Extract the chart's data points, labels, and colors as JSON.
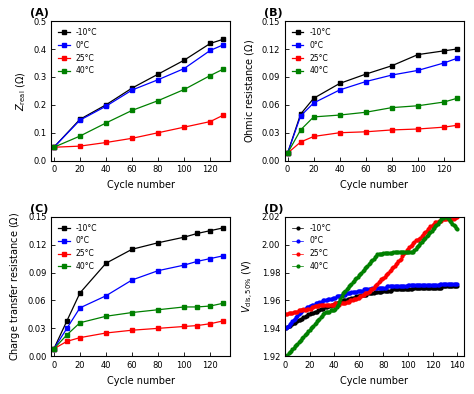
{
  "cycles_A": [
    0,
    20,
    40,
    60,
    80,
    100,
    120,
    130
  ],
  "A_black": [
    0.048,
    0.148,
    0.2,
    0.26,
    0.31,
    0.36,
    0.42,
    0.435
  ],
  "A_blue": [
    0.048,
    0.145,
    0.195,
    0.253,
    0.29,
    0.33,
    0.395,
    0.415
  ],
  "A_red": [
    0.048,
    0.052,
    0.065,
    0.08,
    0.1,
    0.12,
    0.14,
    0.163
  ],
  "A_green": [
    0.048,
    0.088,
    0.135,
    0.18,
    0.215,
    0.255,
    0.305,
    0.328
  ],
  "cycles_B": [
    0,
    10,
    20,
    40,
    60,
    80,
    100,
    120,
    130
  ],
  "B_black": [
    0.008,
    0.05,
    0.067,
    0.083,
    0.093,
    0.102,
    0.114,
    0.118,
    0.12
  ],
  "B_blue": [
    0.008,
    0.048,
    0.062,
    0.076,
    0.085,
    0.092,
    0.097,
    0.105,
    0.11
  ],
  "B_red": [
    0.008,
    0.02,
    0.026,
    0.03,
    0.031,
    0.033,
    0.034,
    0.036,
    0.038
  ],
  "B_green": [
    0.008,
    0.033,
    0.047,
    0.049,
    0.052,
    0.057,
    0.059,
    0.063,
    0.067
  ],
  "cycles_C": [
    0,
    10,
    20,
    40,
    60,
    80,
    100,
    110,
    120,
    130
  ],
  "C_black": [
    0.008,
    0.038,
    0.068,
    0.1,
    0.115,
    0.122,
    0.128,
    0.132,
    0.135,
    0.138
  ],
  "C_blue": [
    0.008,
    0.03,
    0.052,
    0.065,
    0.082,
    0.092,
    0.098,
    0.102,
    0.105,
    0.108
  ],
  "C_red": [
    0.008,
    0.016,
    0.02,
    0.025,
    0.028,
    0.03,
    0.032,
    0.033,
    0.035,
    0.038
  ],
  "C_green": [
    0.008,
    0.023,
    0.036,
    0.043,
    0.047,
    0.05,
    0.053,
    0.053,
    0.054,
    0.057
  ],
  "cycles_D": [
    1,
    2,
    3,
    4,
    5,
    6,
    7,
    8,
    9,
    10,
    11,
    12,
    13,
    14,
    15,
    16,
    17,
    18,
    19,
    20,
    21,
    22,
    23,
    24,
    25,
    26,
    27,
    28,
    29,
    30,
    31,
    32,
    33,
    34,
    35,
    36,
    37,
    38,
    39,
    40,
    41,
    42,
    43,
    44,
    45,
    46,
    47,
    48,
    49,
    50,
    51,
    52,
    53,
    54,
    55,
    56,
    57,
    58,
    59,
    60,
    61,
    62,
    63,
    64,
    65,
    66,
    67,
    68,
    69,
    70,
    71,
    72,
    73,
    74,
    75,
    76,
    77,
    78,
    79,
    80,
    81,
    82,
    83,
    84,
    85,
    86,
    87,
    88,
    89,
    90,
    91,
    92,
    93,
    94,
    95,
    96,
    97,
    98,
    99,
    100,
    101,
    102,
    103,
    104,
    105,
    106,
    107,
    108,
    109,
    110,
    111,
    112,
    113,
    114,
    115,
    116,
    117,
    118,
    119,
    120,
    121,
    122,
    123,
    124,
    125,
    126,
    127,
    128,
    129,
    130,
    131,
    132,
    133,
    134,
    135,
    136,
    137,
    138,
    139,
    140
  ],
  "D_black": [
    1.94,
    1.941,
    1.942,
    1.942,
    1.943,
    1.943,
    1.944,
    1.944,
    1.945,
    1.945,
    1.946,
    1.946,
    1.947,
    1.947,
    1.948,
    1.948,
    1.949,
    1.949,
    1.95,
    1.95,
    1.951,
    1.951,
    1.951,
    1.952,
    1.952,
    1.952,
    1.953,
    1.953,
    1.954,
    1.954,
    1.954,
    1.955,
    1.955,
    1.955,
    1.956,
    1.956,
    1.956,
    1.957,
    1.957,
    1.957,
    1.958,
    1.958,
    1.958,
    1.959,
    1.959,
    1.959,
    1.96,
    1.96,
    1.96,
    1.96,
    1.961,
    1.961,
    1.961,
    1.962,
    1.962,
    1.962,
    1.962,
    1.963,
    1.963,
    1.963,
    1.963,
    1.964,
    1.964,
    1.964,
    1.964,
    1.964,
    1.965,
    1.965,
    1.965,
    1.965,
    1.965,
    1.965,
    1.966,
    1.966,
    1.966,
    1.966,
    1.966,
    1.966,
    1.967,
    1.967,
    1.967,
    1.967,
    1.967,
    1.967,
    1.967,
    1.967,
    1.968,
    1.968,
    1.968,
    1.968,
    1.968,
    1.968,
    1.968,
    1.968,
    1.968,
    1.968,
    1.968,
    1.968,
    1.968,
    1.968,
    1.968,
    1.968,
    1.968,
    1.969,
    1.969,
    1.969,
    1.969,
    1.969,
    1.969,
    1.969,
    1.969,
    1.969,
    1.969,
    1.969,
    1.969,
    1.969,
    1.969,
    1.969,
    1.969,
    1.969,
    1.969,
    1.969,
    1.969,
    1.969,
    1.969,
    1.969,
    1.969,
    1.97,
    1.97,
    1.97,
    1.97,
    1.97,
    1.97,
    1.97,
    1.97,
    1.97,
    1.97,
    1.97,
    1.97,
    1.97
  ],
  "D_blue": [
    1.94,
    1.941,
    1.942,
    1.943,
    1.944,
    1.945,
    1.946,
    1.947,
    1.948,
    1.949,
    1.95,
    1.951,
    1.952,
    1.953,
    1.953,
    1.954,
    1.954,
    1.955,
    1.955,
    1.956,
    1.956,
    1.957,
    1.957,
    1.957,
    1.958,
    1.958,
    1.958,
    1.959,
    1.959,
    1.959,
    1.96,
    1.96,
    1.96,
    1.96,
    1.961,
    1.961,
    1.961,
    1.961,
    1.962,
    1.962,
    1.962,
    1.963,
    1.963,
    1.963,
    1.963,
    1.964,
    1.964,
    1.964,
    1.964,
    1.965,
    1.965,
    1.965,
    1.965,
    1.966,
    1.966,
    1.966,
    1.966,
    1.966,
    1.967,
    1.967,
    1.967,
    1.967,
    1.967,
    1.968,
    1.968,
    1.968,
    1.968,
    1.968,
    1.968,
    1.968,
    1.969,
    1.969,
    1.969,
    1.969,
    1.969,
    1.969,
    1.969,
    1.969,
    1.969,
    1.969,
    1.969,
    1.969,
    1.97,
    1.97,
    1.97,
    1.97,
    1.97,
    1.97,
    1.97,
    1.97,
    1.97,
    1.97,
    1.97,
    1.97,
    1.97,
    1.97,
    1.97,
    1.97,
    1.97,
    1.971,
    1.971,
    1.971,
    1.971,
    1.971,
    1.971,
    1.971,
    1.971,
    1.971,
    1.971,
    1.971,
    1.971,
    1.971,
    1.971,
    1.971,
    1.971,
    1.971,
    1.971,
    1.971,
    1.971,
    1.971,
    1.971,
    1.971,
    1.971,
    1.971,
    1.971,
    1.972,
    1.972,
    1.972,
    1.972,
    1.972,
    1.972,
    1.972,
    1.972,
    1.972,
    1.972,
    1.972,
    1.972,
    1.972,
    1.972,
    1.972
  ],
  "D_red": [
    1.95,
    1.95,
    1.951,
    1.951,
    1.951,
    1.951,
    1.952,
    1.952,
    1.952,
    1.952,
    1.953,
    1.953,
    1.953,
    1.953,
    1.954,
    1.953,
    1.953,
    1.954,
    1.954,
    1.954,
    1.954,
    1.955,
    1.955,
    1.956,
    1.956,
    1.956,
    1.956,
    1.957,
    1.957,
    1.957,
    1.957,
    1.957,
    1.957,
    1.957,
    1.957,
    1.957,
    1.957,
    1.957,
    1.957,
    1.957,
    1.958,
    1.958,
    1.958,
    1.957,
    1.958,
    1.958,
    1.958,
    1.958,
    1.958,
    1.959,
    1.959,
    1.959,
    1.96,
    1.96,
    1.96,
    1.961,
    1.961,
    1.961,
    1.962,
    1.962,
    1.963,
    1.963,
    1.964,
    1.964,
    1.965,
    1.965,
    1.965,
    1.966,
    1.967,
    1.968,
    1.968,
    1.969,
    1.97,
    1.971,
    1.972,
    1.973,
    1.974,
    1.975,
    1.975,
    1.976,
    1.977,
    1.978,
    1.979,
    1.98,
    1.981,
    1.982,
    1.983,
    1.984,
    1.985,
    1.986,
    1.987,
    1.988,
    1.989,
    1.99,
    1.992,
    1.993,
    1.994,
    1.995,
    1.996,
    1.997,
    1.998,
    1.999,
    2.0,
    2.001,
    2.002,
    2.003,
    2.003,
    2.003,
    2.004,
    2.005,
    2.006,
    2.007,
    2.008,
    2.009,
    2.01,
    2.011,
    2.012,
    2.013,
    2.013,
    2.014,
    2.015,
    2.016,
    2.016,
    2.016,
    2.017,
    2.017,
    2.017,
    2.018,
    2.018,
    2.018,
    2.018,
    2.018,
    2.018,
    2.018,
    2.018,
    2.018,
    2.018,
    2.019,
    2.02,
    2.02
  ],
  "D_green": [
    1.92,
    1.921,
    1.922,
    1.923,
    1.924,
    1.925,
    1.926,
    1.927,
    1.928,
    1.929,
    1.93,
    1.931,
    1.932,
    1.933,
    1.934,
    1.935,
    1.936,
    1.937,
    1.938,
    1.939,
    1.94,
    1.941,
    1.942,
    1.943,
    1.944,
    1.945,
    1.946,
    1.947,
    1.948,
    1.949,
    1.95,
    1.951,
    1.952,
    1.952,
    1.952,
    1.952,
    1.953,
    1.953,
    1.953,
    1.953,
    1.954,
    1.955,
    1.957,
    1.959,
    1.961,
    1.963,
    1.965,
    1.966,
    1.967,
    1.968,
    1.969,
    1.97,
    1.971,
    1.972,
    1.973,
    1.974,
    1.975,
    1.976,
    1.977,
    1.978,
    1.979,
    1.98,
    1.981,
    1.982,
    1.983,
    1.984,
    1.985,
    1.986,
    1.987,
    1.988,
    1.989,
    1.99,
    1.991,
    1.992,
    1.993,
    1.993,
    1.993,
    1.993,
    1.993,
    1.994,
    1.994,
    1.994,
    1.994,
    1.994,
    1.994,
    1.994,
    1.994,
    1.995,
    1.995,
    1.995,
    1.995,
    1.995,
    1.995,
    1.995,
    1.995,
    1.995,
    1.995,
    1.995,
    1.995,
    1.995,
    1.995,
    1.995,
    1.995,
    1.995,
    1.996,
    1.997,
    1.998,
    1.999,
    2.0,
    2.001,
    2.002,
    2.003,
    2.004,
    2.005,
    2.006,
    2.007,
    2.008,
    2.009,
    2.01,
    2.011,
    2.012,
    2.013,
    2.014,
    2.015,
    2.016,
    2.017,
    2.018,
    2.019,
    2.02,
    2.021,
    2.02,
    2.019,
    2.018,
    2.017,
    2.016,
    2.015,
    2.014,
    2.013,
    2.012,
    2.011
  ],
  "labels": [
    "-10°C",
    "0°C",
    "25°C",
    "40°C"
  ],
  "marker_sq": "s",
  "marker_o": "o",
  "markersize_sq": 3,
  "markersize_o": 3,
  "bg_color": "white"
}
